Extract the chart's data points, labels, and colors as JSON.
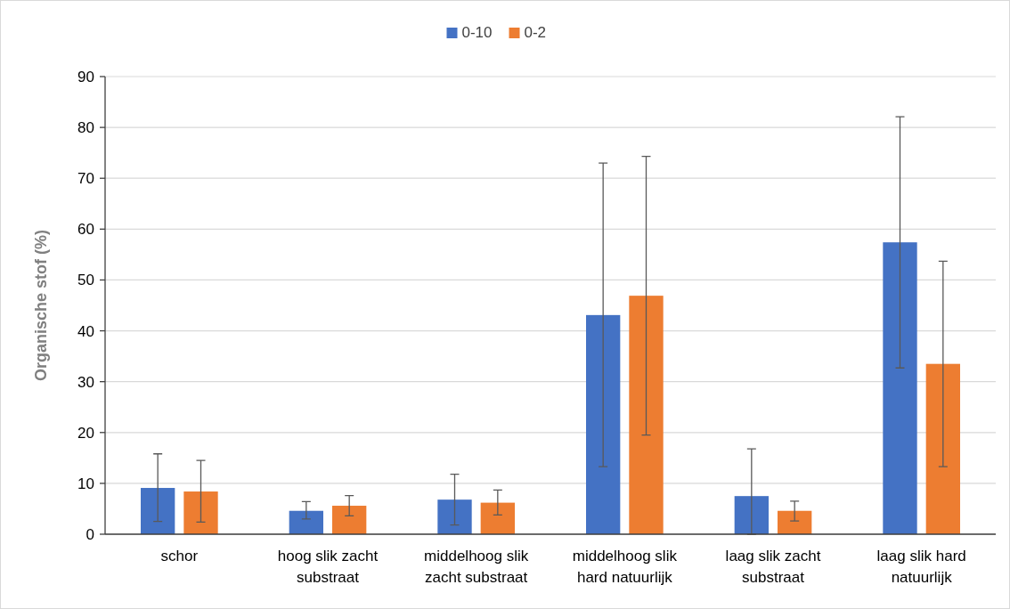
{
  "chart_data": {
    "type": "bar",
    "ylabel": "Organische stof (%)",
    "categories": [
      "schor",
      "hoog slik zacht substraat",
      "middelhoog slik zacht substraat",
      "middelhoog slik hard natuurlijk",
      "laag slik zacht substraat",
      "laag slik hard natuurlijk"
    ],
    "series": [
      {
        "name": "0-10",
        "color": "#4472c4",
        "values": [
          9.1,
          4.6,
          6.8,
          43.1,
          7.5,
          57.4
        ],
        "errors": [
          [
            2.5,
            15.8
          ],
          [
            3.0,
            6.4
          ],
          [
            1.8,
            11.8
          ],
          [
            13.3,
            73.0
          ],
          [
            0,
            16.8
          ],
          [
            32.7,
            82.1
          ]
        ]
      },
      {
        "name": "0-2",
        "color": "#ed7d31",
        "values": [
          8.4,
          5.6,
          6.2,
          46.9,
          4.6,
          33.5
        ],
        "errors": [
          [
            2.4,
            14.5
          ],
          [
            3.6,
            7.6
          ],
          [
            3.8,
            8.7
          ],
          [
            19.5,
            74.3
          ],
          [
            2.6,
            6.5
          ],
          [
            13.3,
            53.7
          ]
        ]
      }
    ],
    "ylim": [
      0,
      90
    ],
    "yticks": [
      0,
      10,
      20,
      30,
      40,
      50,
      60,
      70,
      80,
      90
    ],
    "grid": "y",
    "legend": "top"
  }
}
